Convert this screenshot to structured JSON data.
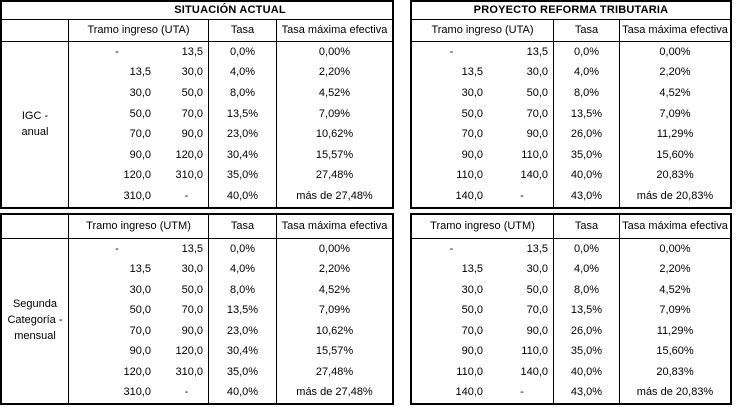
{
  "colors": {
    "border": "#000000",
    "background": "#ffffff",
    "text": "#000000"
  },
  "section_titles": {
    "left": "SITUACIÓN ACTUAL",
    "right": "PROYECTO REFORMA TRIBUTARIA"
  },
  "row_group_labels": {
    "igc": "IGC -\nanual",
    "segunda": "Segunda\nCategoría -\nmensual"
  },
  "tables": [
    {
      "id": "situacion-actual-igc",
      "tramo_header": "Tramo ingreso (UTA)",
      "tasa_header": "Tasa",
      "max_header": "Tasa máxima efectiva",
      "rows": [
        [
          "-",
          "13,5",
          "0,0%",
          "0,00%"
        ],
        [
          "13,5",
          "30,0",
          "4,0%",
          "2,20%"
        ],
        [
          "30,0",
          "50,0",
          "8,0%",
          "4,52%"
        ],
        [
          "50,0",
          "70,0",
          "13,5%",
          "7,09%"
        ],
        [
          "70,0",
          "90,0",
          "23,0%",
          "10,62%"
        ],
        [
          "90,0",
          "120,0",
          "30,4%",
          "15,57%"
        ],
        [
          "120,0",
          "310,0",
          "35,0%",
          "27,48%"
        ],
        [
          "310,0",
          "-",
          "40,0%",
          "más de 27,48%"
        ]
      ]
    },
    {
      "id": "reforma-igc",
      "tramo_header": "Tramo ingreso (UTA)",
      "tasa_header": "Tasa",
      "max_header": "Tasa máxima efectiva",
      "rows": [
        [
          "-",
          "13,5",
          "0,0%",
          "0,00%"
        ],
        [
          "13,5",
          "30,0",
          "4,0%",
          "2,20%"
        ],
        [
          "30,0",
          "50,0",
          "8,0%",
          "4,52%"
        ],
        [
          "50,0",
          "70,0",
          "13,5%",
          "7,09%"
        ],
        [
          "70,0",
          "90,0",
          "26,0%",
          "11,29%"
        ],
        [
          "90,0",
          "110,0",
          "35,0%",
          "15,60%"
        ],
        [
          "110,0",
          "140,0",
          "40,0%",
          "20,83%"
        ],
        [
          "140,0",
          "-",
          "43,0%",
          "más de 20,83%"
        ]
      ]
    },
    {
      "id": "situacion-actual-segunda",
      "tramo_header": "Tramo ingreso (UTM)",
      "tasa_header": "Tasa",
      "max_header": "Tasa máxima efectiva",
      "rows": [
        [
          "-",
          "13,5",
          "0,0%",
          "0,00%"
        ],
        [
          "13,5",
          "30,0",
          "4,0%",
          "2,20%"
        ],
        [
          "30,0",
          "50,0",
          "8,0%",
          "4,52%"
        ],
        [
          "50,0",
          "70,0",
          "13,5%",
          "7,09%"
        ],
        [
          "70,0",
          "90,0",
          "23,0%",
          "10,62%"
        ],
        [
          "90,0",
          "120,0",
          "30,4%",
          "15,57%"
        ],
        [
          "120,0",
          "310,0",
          "35,0%",
          "27,48%"
        ],
        [
          "310,0",
          "-",
          "40,0%",
          "más de 27,48%"
        ]
      ]
    },
    {
      "id": "reforma-segunda",
      "tramo_header": "Tramo ingreso (UTM)",
      "tasa_header": "Tasa",
      "max_header": "Tasa máxima efectiva",
      "rows": [
        [
          "-",
          "13,5",
          "0,0%",
          "0,00%"
        ],
        [
          "13,5",
          "30,0",
          "4,0%",
          "2,20%"
        ],
        [
          "30,0",
          "50,0",
          "8,0%",
          "4,52%"
        ],
        [
          "50,0",
          "70,0",
          "13,5%",
          "7,09%"
        ],
        [
          "70,0",
          "90,0",
          "26,0%",
          "11,29%"
        ],
        [
          "90,0",
          "110,0",
          "35,0%",
          "15,60%"
        ],
        [
          "110,0",
          "140,0",
          "40,0%",
          "20,83%"
        ],
        [
          "140,0",
          "-",
          "43,0%",
          "más de 20,83%"
        ]
      ]
    }
  ]
}
